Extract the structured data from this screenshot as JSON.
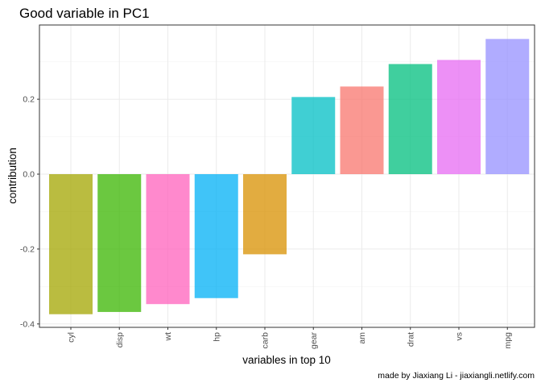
{
  "chart_data": {
    "type": "bar",
    "title": "Good variable in PC1",
    "xlabel": "variables in top 10",
    "ylabel": "contribution",
    "caption": "made by Jiaxiang Li - jiaxiangli.netlify.com",
    "categories": [
      "cyl",
      "disp",
      "wt",
      "hp",
      "carb",
      "gear",
      "am",
      "drat",
      "vs",
      "mpg"
    ],
    "values": [
      -0.374,
      -0.368,
      -0.347,
      -0.331,
      -0.214,
      0.206,
      0.234,
      0.294,
      0.305,
      0.361
    ],
    "colors": [
      "#A3A500",
      "#39B600",
      "#FF62BC",
      "#00B0F6",
      "#D89000",
      "#00BFC4",
      "#F8766D",
      "#00BF7D",
      "#E76BF3",
      "#9590FF"
    ],
    "yticks": [
      -0.4,
      -0.2,
      0.0,
      0.2
    ],
    "ytick_labels": [
      "-0.4",
      "-0.2",
      "0.0",
      "0.2"
    ],
    "ylim": [
      -0.4,
      0.3
    ]
  }
}
